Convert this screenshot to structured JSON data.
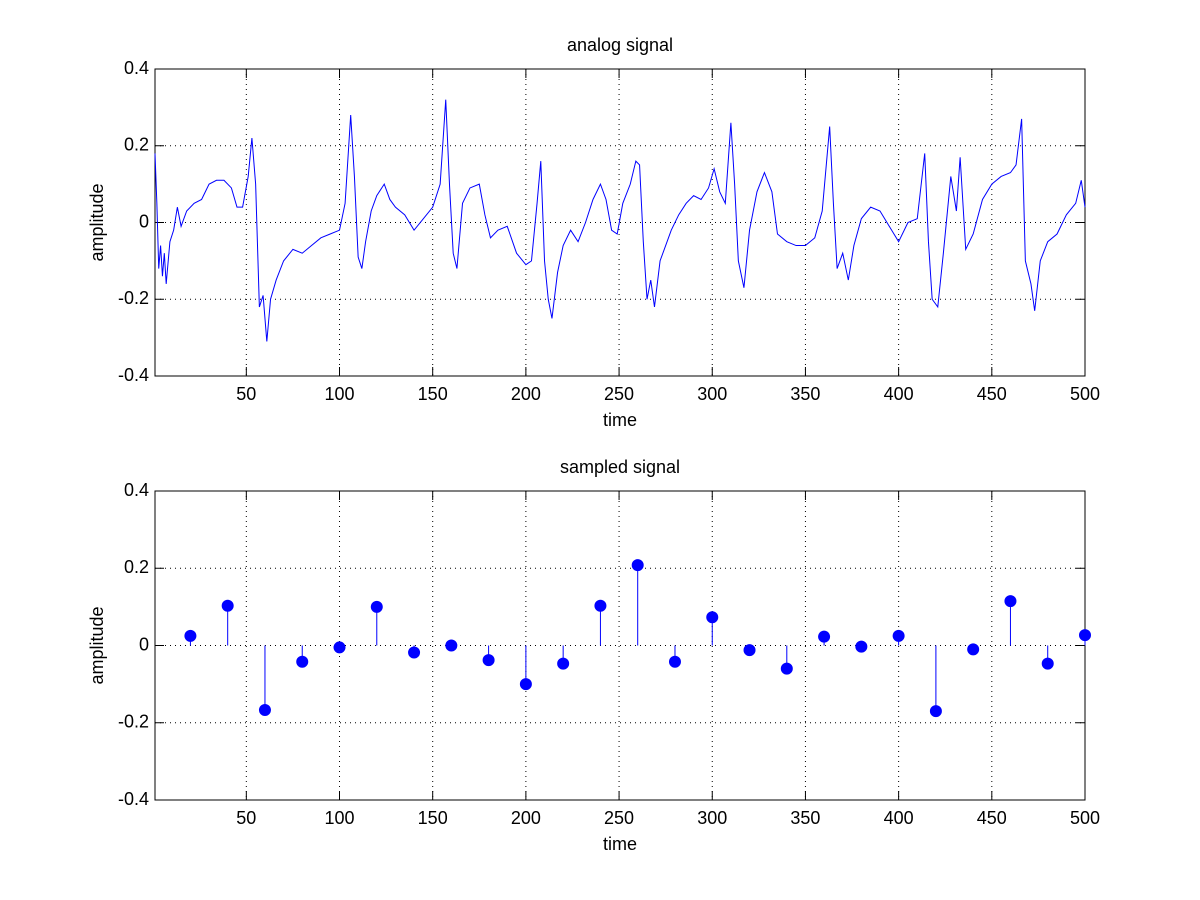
{
  "chart_data": [
    {
      "type": "line",
      "title": "analog signal",
      "xlabel": "time",
      "ylabel": "amplitude",
      "color": "#0000ff",
      "grid": true,
      "xlim": [
        1,
        500
      ],
      "ylim": [
        -0.4,
        0.4
      ],
      "xticks": [
        50,
        100,
        150,
        200,
        250,
        300,
        350,
        400,
        450,
        500
      ],
      "yticks": [
        -0.4,
        -0.2,
        0,
        0.2,
        0.4
      ],
      "x": [
        1,
        2,
        3,
        4,
        5,
        6,
        7,
        9,
        11,
        13,
        15,
        18,
        22,
        26,
        30,
        34,
        38,
        42,
        45,
        48,
        51,
        53,
        55,
        57,
        59,
        61,
        63,
        66,
        70,
        75,
        80,
        85,
        90,
        95,
        100,
        103,
        106,
        108,
        110,
        112,
        114,
        117,
        120,
        124,
        127,
        130,
        135,
        140,
        145,
        150,
        154,
        157,
        159,
        161,
        163,
        166,
        170,
        175,
        178,
        181,
        185,
        190,
        195,
        200,
        203,
        206,
        208,
        210,
        212,
        214,
        217,
        220,
        224,
        228,
        232,
        236,
        240,
        243,
        246,
        249,
        252,
        256,
        259,
        261,
        263,
        265,
        267,
        269,
        272,
        275,
        278,
        282,
        286,
        290,
        294,
        298,
        301,
        304,
        307,
        310,
        312,
        314,
        317,
        320,
        324,
        328,
        332,
        335,
        340,
        345,
        350,
        355,
        359,
        363,
        365,
        367,
        370,
        373,
        376,
        380,
        385,
        390,
        395,
        400,
        405,
        410,
        414,
        416,
        418,
        421,
        424,
        428,
        431,
        433,
        436,
        440,
        445,
        450,
        455,
        460,
        463,
        466,
        468,
        471,
        473,
        476,
        480,
        485,
        490,
        495,
        498,
        500
      ],
      "values": [
        0.18,
        0.05,
        -0.12,
        -0.06,
        -0.14,
        -0.08,
        -0.16,
        -0.05,
        -0.02,
        0.04,
        -0.01,
        0.03,
        0.05,
        0.06,
        0.1,
        0.11,
        0.11,
        0.09,
        0.04,
        0.04,
        0.12,
        0.22,
        0.1,
        -0.22,
        -0.19,
        -0.31,
        -0.2,
        -0.15,
        -0.1,
        -0.07,
        -0.08,
        -0.06,
        -0.04,
        -0.03,
        -0.02,
        0.05,
        0.28,
        0.12,
        -0.09,
        -0.12,
        -0.05,
        0.03,
        0.07,
        0.1,
        0.06,
        0.04,
        0.02,
        -0.02,
        0.01,
        0.04,
        0.1,
        0.32,
        0.1,
        -0.08,
        -0.12,
        0.05,
        0.09,
        0.1,
        0.02,
        -0.04,
        -0.02,
        -0.01,
        -0.08,
        -0.11,
        -0.1,
        0.05,
        0.16,
        -0.1,
        -0.2,
        -0.25,
        -0.13,
        -0.06,
        -0.02,
        -0.05,
        0.0,
        0.06,
        0.1,
        0.06,
        -0.02,
        -0.03,
        0.05,
        0.1,
        0.16,
        0.15,
        -0.05,
        -0.2,
        -0.15,
        -0.22,
        -0.1,
        -0.06,
        -0.02,
        0.02,
        0.05,
        0.07,
        0.06,
        0.09,
        0.14,
        0.08,
        0.05,
        0.26,
        0.1,
        -0.1,
        -0.17,
        -0.02,
        0.08,
        0.13,
        0.08,
        -0.03,
        -0.05,
        -0.06,
        -0.06,
        -0.04,
        0.03,
        0.25,
        0.05,
        -0.12,
        -0.08,
        -0.15,
        -0.06,
        0.01,
        0.04,
        0.03,
        -0.01,
        -0.05,
        0.0,
        0.01,
        0.18,
        -0.05,
        -0.2,
        -0.22,
        -0.08,
        0.12,
        0.03,
        0.17,
        -0.07,
        -0.03,
        0.06,
        0.1,
        0.12,
        0.13,
        0.15,
        0.27,
        -0.1,
        -0.16,
        -0.23,
        -0.1,
        -0.05,
        -0.03,
        0.02,
        0.05,
        0.11,
        0.04
      ]
    },
    {
      "type": "stem",
      "title": "sampled signal",
      "xlabel": "time",
      "ylabel": "amplitude",
      "color": "#0000ff",
      "grid": true,
      "xlim": [
        1,
        500
      ],
      "ylim": [
        -0.4,
        0.4
      ],
      "xticks": [
        50,
        100,
        150,
        200,
        250,
        300,
        350,
        400,
        450,
        500
      ],
      "yticks": [
        -0.4,
        -0.2,
        0,
        0.2,
        0.4
      ],
      "x": [
        20,
        40,
        60,
        80,
        100,
        120,
        140,
        160,
        180,
        200,
        220,
        240,
        260,
        280,
        300,
        320,
        340,
        360,
        380,
        400,
        420,
        440,
        460,
        480,
        500
      ],
      "values": [
        0.025,
        0.103,
        -0.167,
        -0.042,
        -0.005,
        0.1,
        -0.018,
        0,
        -0.038,
        -0.1,
        -0.047,
        0.103,
        0.208,
        -0.042,
        0.073,
        -0.012,
        -0.06,
        0.023,
        -0.003,
        0.025,
        -0.17,
        -0.01,
        0.115,
        -0.047,
        0.027
      ]
    }
  ]
}
